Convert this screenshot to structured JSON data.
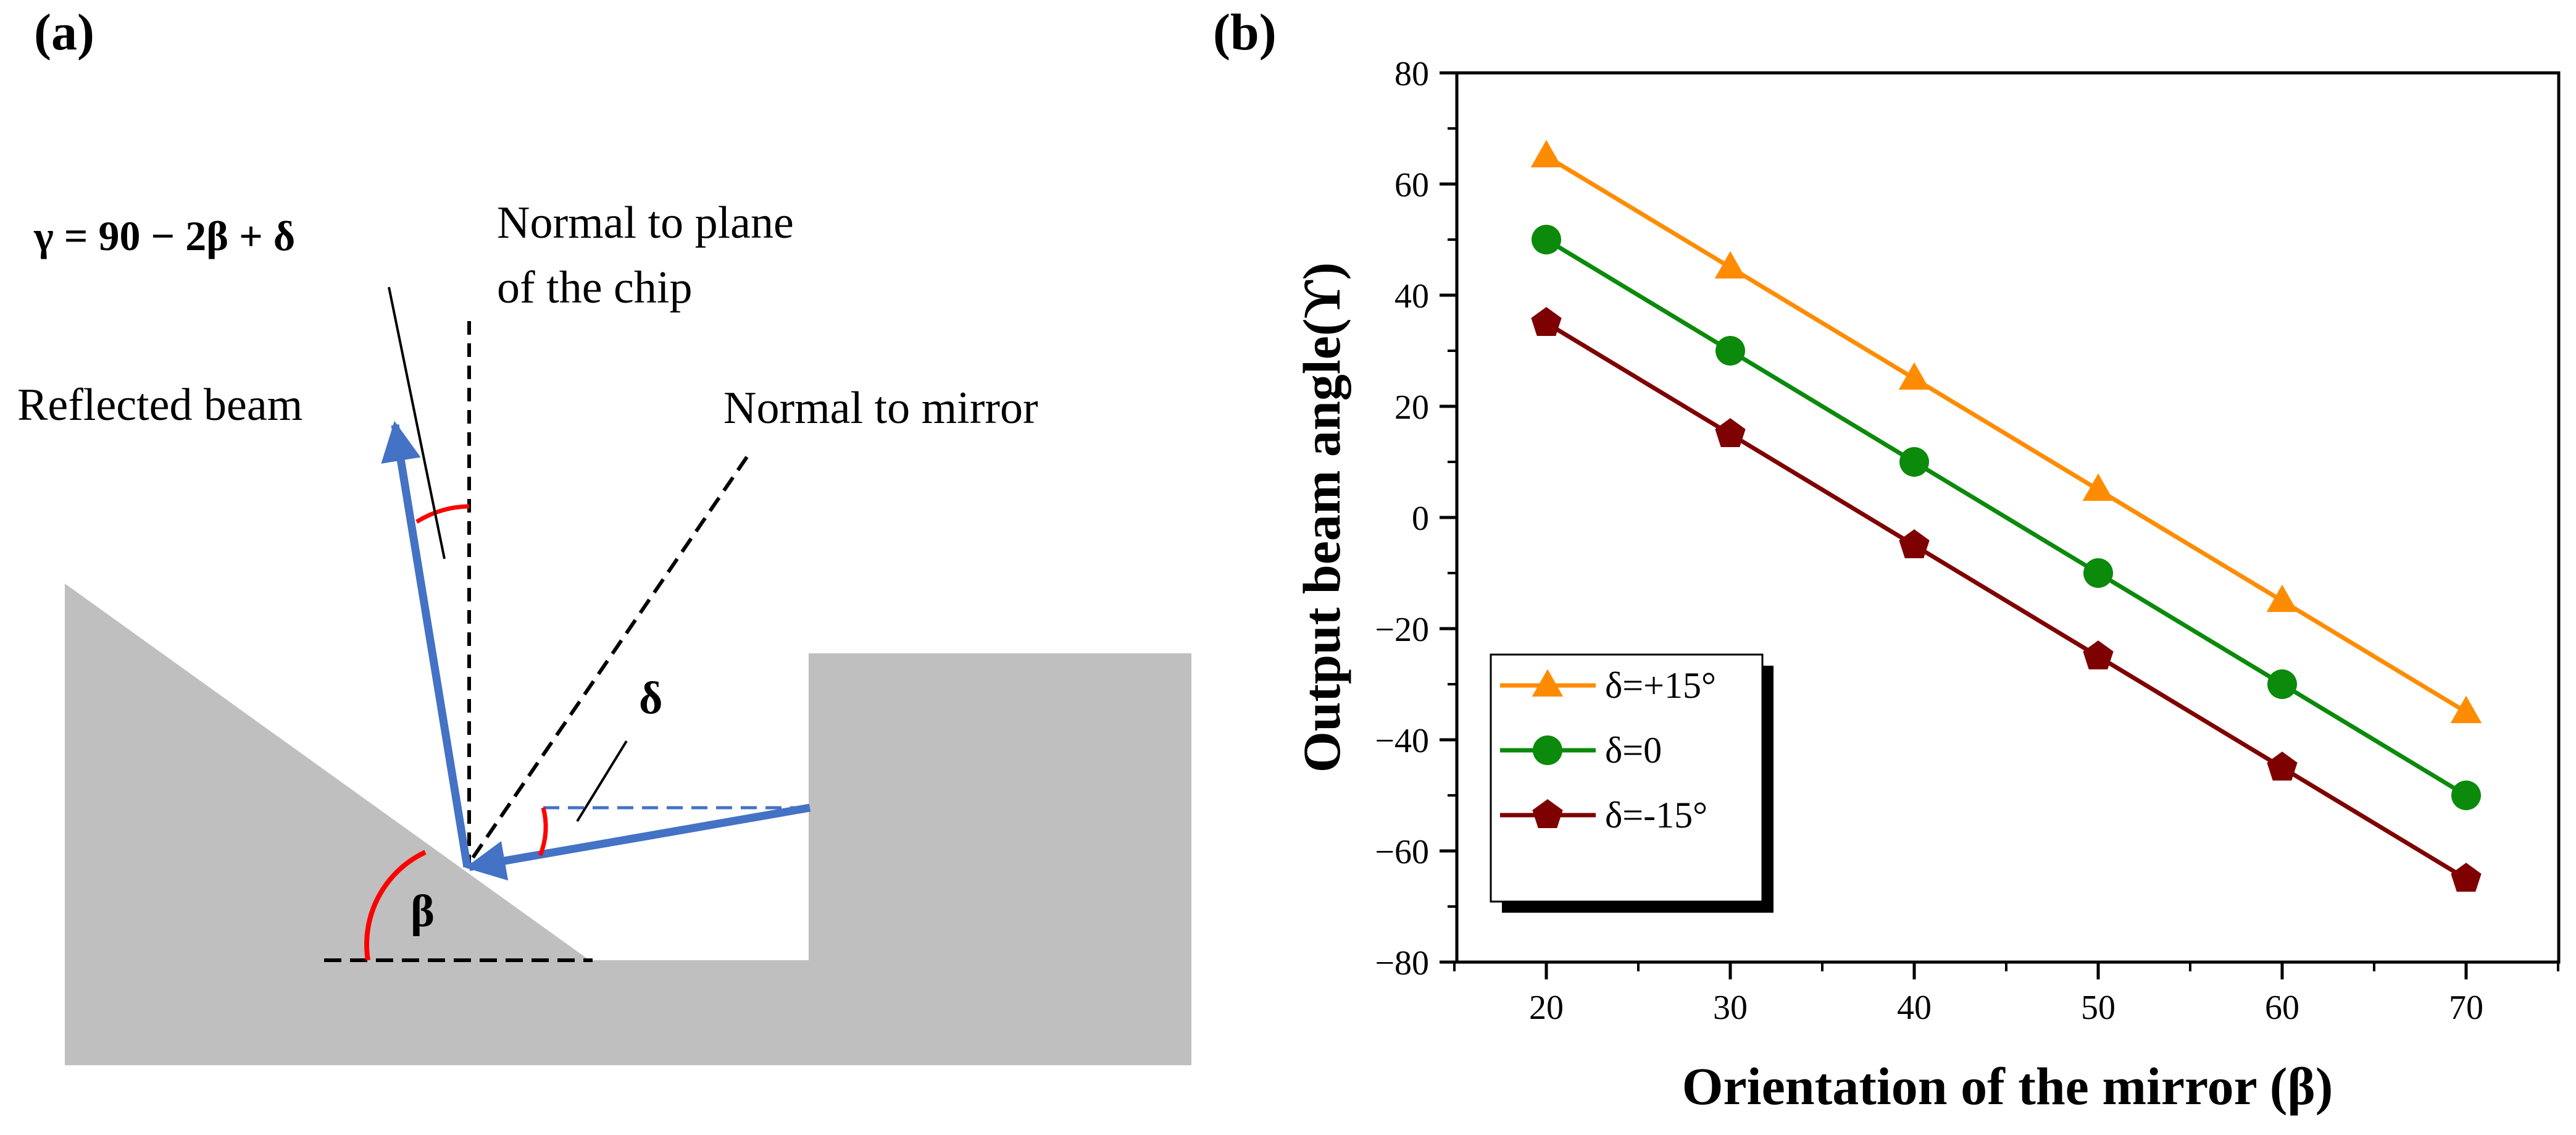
{
  "panel_a": {
    "label": "(a)",
    "equation": "γ = 90 − 2β + δ",
    "normal_plane_line1": "Normal to plane",
    "normal_plane_line2": "of the chip",
    "normal_mirror": "Normal to mirror",
    "reflected_beam": "Reflected beam",
    "delta_symbol": "δ",
    "beta_symbol": "β"
  },
  "panel_b": {
    "label": "(b)"
  },
  "colors": {
    "beam": "#4472C4",
    "substrate": "#BFBFBF",
    "angle_arc": "#FF0000",
    "orange": "#FF8C00",
    "green": "#0B8A0B",
    "maroon": "#7F0000"
  },
  "chart_data": {
    "type": "line",
    "xlabel": "Orientation of the mirror (β)",
    "ylabel": "Output beam angle(ϒ)",
    "x": [
      20,
      30,
      40,
      50,
      60,
      70
    ],
    "xlim": [
      15,
      75
    ],
    "ylim": [
      -80,
      80
    ],
    "xticks": [
      20,
      30,
      40,
      50,
      60,
      70
    ],
    "yticks": [
      -80,
      -60,
      -40,
      -20,
      0,
      20,
      40,
      60,
      80
    ],
    "legend_position": "lower-left",
    "series": [
      {
        "name": "δ=+15°",
        "marker": "triangle",
        "color": "#FF8C00",
        "values": [
          65,
          45,
          25,
          5,
          -15,
          -35
        ]
      },
      {
        "name": "δ=0",
        "marker": "circle",
        "color": "#0B8A0B",
        "values": [
          50,
          30,
          10,
          -10,
          -30,
          -50
        ]
      },
      {
        "name": "δ=-15°",
        "marker": "pentagon",
        "color": "#7F0000",
        "values": [
          35,
          15,
          -5,
          -25,
          -45,
          -65
        ]
      }
    ]
  }
}
